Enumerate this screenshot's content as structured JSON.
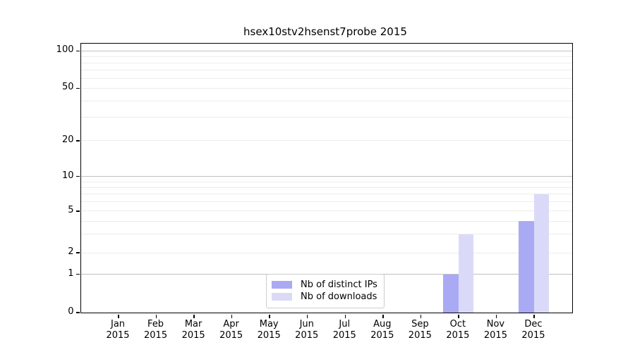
{
  "title": "hsex10stv2hsenst7probe 2015",
  "chart_data": {
    "type": "bar",
    "title": "hsex10stv2hsenst7probe 2015",
    "x_months": [
      "Jan",
      "Feb",
      "Mar",
      "Apr",
      "May",
      "Jun",
      "Jul",
      "Aug",
      "Sep",
      "Oct",
      "Nov",
      "Dec"
    ],
    "x_year": "2015",
    "categories": [
      "Jan 2015",
      "Feb 2015",
      "Mar 2015",
      "Apr 2015",
      "May 2015",
      "Jun 2015",
      "Jul 2015",
      "Aug 2015",
      "Sep 2015",
      "Oct 2015",
      "Nov 2015",
      "Dec 2015"
    ],
    "series": [
      {
        "name": "Nb of distinct IPs",
        "color": "#a9a9f4",
        "values": [
          0,
          0,
          0,
          0,
          0,
          0,
          0,
          0,
          0,
          1,
          0,
          4
        ]
      },
      {
        "name": "Nb of downloads",
        "color": "#dadaf8",
        "values": [
          0,
          0,
          0,
          0,
          0,
          0,
          0,
          0,
          0,
          3,
          0,
          7
        ]
      }
    ],
    "y_axis": {
      "scale": "log-like",
      "tick_values": [
        0,
        1,
        2,
        5,
        10,
        20,
        50,
        100
      ],
      "major_gridlines": [
        1,
        10,
        100
      ],
      "minor_gridlines": [
        2,
        3,
        4,
        5,
        6,
        7,
        8,
        9,
        20,
        30,
        40,
        50,
        60,
        70,
        80,
        90
      ],
      "ylim": [
        0,
        110
      ]
    },
    "legend_position": "lower center",
    "grid": true
  },
  "colors": {
    "background": "#ffffff",
    "axis": "#000000",
    "major_grid": "#c0c0c0",
    "minor_grid": "#ececec",
    "bar_distinct_ips": "#a9a9f4",
    "bar_downloads": "#dadaf8",
    "legend_border": "#cccccc"
  }
}
